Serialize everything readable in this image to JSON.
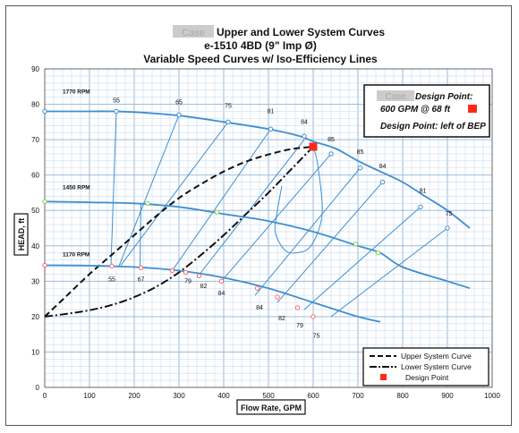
{
  "chart_data": {
    "type": "line",
    "title_lines": [
      "Upper and Lower System Curves",
      "e-1510 4BD (9\" Imp Ø)",
      "Variable Speed Curves w/ Iso-Efficiency Lines"
    ],
    "title_redacted": "Case",
    "xlabel": "Flow Rate, GPM",
    "ylabel": "HEAD, ft",
    "xlim": [
      0,
      1000
    ],
    "ylim": [
      0,
      90
    ],
    "xticks": [
      0,
      100,
      200,
      300,
      400,
      500,
      600,
      700,
      800,
      900,
      1000
    ],
    "yticks": [
      0,
      10,
      20,
      30,
      40,
      50,
      60,
      70,
      80,
      90
    ],
    "grid": true,
    "design_box": {
      "redacted": "Case",
      "line1": "Design Point:",
      "line2": "600 GPM @ 68 ft",
      "line3": "Design Point: left of BEP"
    },
    "legend": {
      "placement": "bottom-right",
      "items": [
        {
          "label": "Upper System Curve",
          "style": "dashed"
        },
        {
          "label": "Lower System Curve",
          "style": "dashdot"
        },
        {
          "label": "Design Point",
          "style": "marker"
        }
      ]
    },
    "design_point": {
      "x": 600,
      "y": 68,
      "color": "#ff2a1a"
    },
    "pump_curves": [
      {
        "name": "1770 RPM",
        "label_at": [
          40,
          83
        ],
        "color": "#3f8fd0",
        "points": [
          [
            0,
            78
          ],
          [
            100,
            78
          ],
          [
            150,
            78
          ],
          [
            200,
            77.8
          ],
          [
            300,
            76.8
          ],
          [
            400,
            75
          ],
          [
            500,
            73
          ],
          [
            570,
            71
          ],
          [
            600,
            69.5
          ],
          [
            650,
            67.5
          ],
          [
            700,
            64
          ],
          [
            750,
            61
          ],
          [
            800,
            58
          ],
          [
            850,
            54
          ],
          [
            900,
            50
          ],
          [
            950,
            45
          ]
        ]
      },
      {
        "name": "1450 RPM",
        "label_at": [
          40,
          56
        ],
        "color": "#3f8fd0",
        "points": [
          [
            0,
            52.5
          ],
          [
            100,
            52.3
          ],
          [
            200,
            52
          ],
          [
            300,
            51
          ],
          [
            400,
            49
          ],
          [
            500,
            47
          ],
          [
            600,
            44
          ],
          [
            700,
            40
          ],
          [
            750,
            38
          ],
          [
            800,
            34
          ],
          [
            900,
            30
          ],
          [
            950,
            28
          ]
        ]
      },
      {
        "name": "1170 RPM",
        "label_at": [
          40,
          37
        ],
        "color": "#3f8fd0",
        "points": [
          [
            0,
            34.5
          ],
          [
            100,
            34.4
          ],
          [
            200,
            34
          ],
          [
            300,
            33
          ],
          [
            400,
            31
          ],
          [
            500,
            28
          ],
          [
            600,
            24
          ],
          [
            700,
            20
          ],
          [
            750,
            18.5
          ]
        ]
      }
    ],
    "upper_system_curve": [
      [
        0,
        20
      ],
      [
        50,
        26
      ],
      [
        100,
        32
      ],
      [
        150,
        37.5
      ],
      [
        200,
        43
      ],
      [
        250,
        48.5
      ],
      [
        300,
        53.5
      ],
      [
        350,
        57.5
      ],
      [
        400,
        61
      ],
      [
        450,
        63.8
      ],
      [
        500,
        65.8
      ],
      [
        550,
        67.3
      ],
      [
        600,
        68
      ]
    ],
    "lower_system_curve": [
      [
        0,
        20
      ],
      [
        50,
        20.8
      ],
      [
        100,
        21.8
      ],
      [
        150,
        23.3
      ],
      [
        200,
        25.5
      ],
      [
        250,
        28.5
      ],
      [
        300,
        32.5
      ],
      [
        350,
        37.5
      ],
      [
        400,
        43
      ],
      [
        450,
        49
      ],
      [
        500,
        55
      ],
      [
        550,
        61.5
      ],
      [
        600,
        68
      ]
    ],
    "bep_contour": [
      [
        530,
        57
      ],
      [
        520,
        50
      ],
      [
        515,
        44
      ],
      [
        535,
        39
      ],
      [
        560,
        38
      ],
      [
        595,
        40
      ],
      [
        620,
        49
      ],
      [
        610,
        63
      ],
      [
        600,
        68
      ]
    ],
    "iso_efficiency_lines": [
      {
        "label": "55",
        "from": [
          160,
          78
        ],
        "to": [
          148,
          34.5
        ],
        "label_hi": [
          160,
          80.5
        ],
        "label_lo": [
          150,
          31
        ]
      },
      {
        "label": "65",
        "from": [
          300,
          77
        ],
        "to": [
          165,
          34
        ],
        "label_hi": [
          300,
          80
        ],
        "label_lo": null
      },
      {
        "label": "67",
        "from": [
          215,
          52
        ],
        "to": [
          213,
          34
        ],
        "label_hi": null,
        "label_lo": [
          213,
          31
        ]
      },
      {
        "label": "75",
        "from": [
          410,
          75
        ],
        "to": [
          170,
          34.5
        ],
        "label_hi": [
          410,
          79
        ],
        "label_lo": [
          410,
          18
        ]
      },
      {
        "label": "81",
        "from": [
          505,
          73
        ],
        "to": [
          285,
          33
        ],
        "label_hi": [
          505,
          77.5
        ],
        "label_lo": [
          505,
          14.5
        ]
      },
      {
        "label": "84",
        "from": [
          580,
          70
        ],
        "to": [
          340,
          31
        ],
        "label_hi": [
          580,
          74.5
        ],
        "label_lo": [
          580,
          11.5
        ]
      },
      {
        "label": "85",
        "from": [
          640,
          66
        ],
        "to": [
          395,
          30
        ],
        "label_hi": [
          640,
          69.5
        ],
        "label_lo": null
      },
      {
        "label": "85",
        "from": [
          705,
          62
        ],
        "to": [
          470,
          26
        ],
        "label_hi": [
          705,
          66
        ],
        "label_lo": null
      },
      {
        "label": "84",
        "from": [
          755,
          58
        ],
        "to": [
          520,
          24
        ],
        "label_hi": [
          755,
          62
        ],
        "label_lo": null
      },
      {
        "label": "81",
        "from": [
          840,
          51
        ],
        "to": [
          580,
          22
        ],
        "label_hi": [
          845,
          55
        ],
        "label_lo": null
      },
      {
        "label": "75",
        "from": [
          900,
          45
        ],
        "to": [
          640,
          20
        ],
        "label_hi": [
          903,
          48.5
        ],
        "label_lo": null
      }
    ],
    "lower_labels": [
      {
        "label": "55",
        "at": [
          150,
          30
        ]
      },
      {
        "label": "67",
        "at": [
          215,
          30
        ]
      },
      {
        "label": "79",
        "at": [
          320,
          29.5
        ]
      },
      {
        "label": "82",
        "at": [
          355,
          28
        ]
      },
      {
        "label": "84",
        "at": [
          395,
          26
        ]
      },
      {
        "label": "84",
        "at": [
          480,
          22
        ]
      },
      {
        "label": "82",
        "at": [
          530,
          19
        ]
      },
      {
        "label": "79",
        "at": [
          570,
          17
        ]
      },
      {
        "label": "75",
        "at": [
          607,
          14
        ]
      }
    ],
    "markers": [
      [
        0,
        78,
        "#3f8fd0"
      ],
      [
        160,
        78,
        "#3f8fd0"
      ],
      [
        300,
        77,
        "#3f8fd0"
      ],
      [
        410,
        75,
        "#3f8fd0"
      ],
      [
        505,
        73,
        "#3f8fd0"
      ],
      [
        580,
        71,
        "#3f8fd0"
      ],
      [
        640,
        66,
        "#3f8fd0"
      ],
      [
        705,
        62,
        "#3f8fd0"
      ],
      [
        755,
        58,
        "#3f8fd0"
      ],
      [
        840,
        51,
        "#3f8fd0"
      ],
      [
        900,
        45,
        "#3f8fd0"
      ],
      [
        0,
        52.5,
        "#86d04a"
      ],
      [
        230,
        52,
        "#86d04a"
      ],
      [
        385,
        49.5,
        "#86d04a"
      ],
      [
        695,
        40.5,
        "#86d04a"
      ],
      [
        745,
        38,
        "#86d04a"
      ],
      [
        0,
        34.5,
        "#ff6666"
      ],
      [
        150,
        34.3,
        "#ff6666"
      ],
      [
        215,
        33.8,
        "#ff6666"
      ],
      [
        285,
        33,
        "#ff6666"
      ],
      [
        315,
        32.5,
        "#ff6666"
      ],
      [
        345,
        31.5,
        "#ff6666"
      ],
      [
        395,
        30,
        "#ff6666"
      ],
      [
        475,
        28,
        "#ff6666"
      ],
      [
        520,
        25.5,
        "#ff6666"
      ],
      [
        565,
        22.5,
        "#ff6666"
      ],
      [
        600,
        20,
        "#ff6666"
      ]
    ]
  }
}
